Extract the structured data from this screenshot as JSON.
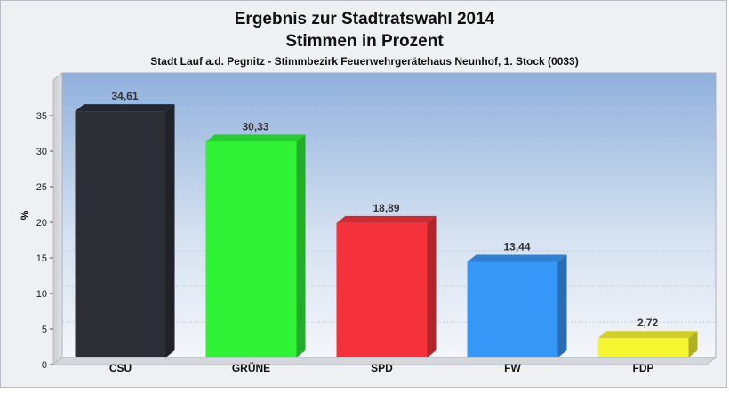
{
  "chart_data": {
    "type": "bar",
    "title": "Ergebnis zur Stadtratswahl 2014",
    "subtitle": "Stimmen in Prozent",
    "caption": "Stadt Lauf a.d. Pegnitz - Stimmbezirk Feuerwehrgerätehaus Neunhof, 1. Stock (0033)",
    "xlabel": "",
    "ylabel": "%",
    "categories": [
      "CSU",
      "GRÜNE",
      "SPD",
      "FW",
      "FDP"
    ],
    "values": [
      34.61,
      30.33,
      18.89,
      13.44,
      2.72
    ],
    "value_labels": [
      "34,61",
      "30,33",
      "18,89",
      "13,44",
      "2,72"
    ],
    "colors": [
      "#2c2f36",
      "#2ff236",
      "#f5323b",
      "#3797f7",
      "#f5f530"
    ],
    "ylim": [
      0,
      40
    ],
    "yticks": [
      0,
      5,
      10,
      15,
      20,
      25,
      30,
      35
    ],
    "grid": true,
    "legend": "none"
  }
}
